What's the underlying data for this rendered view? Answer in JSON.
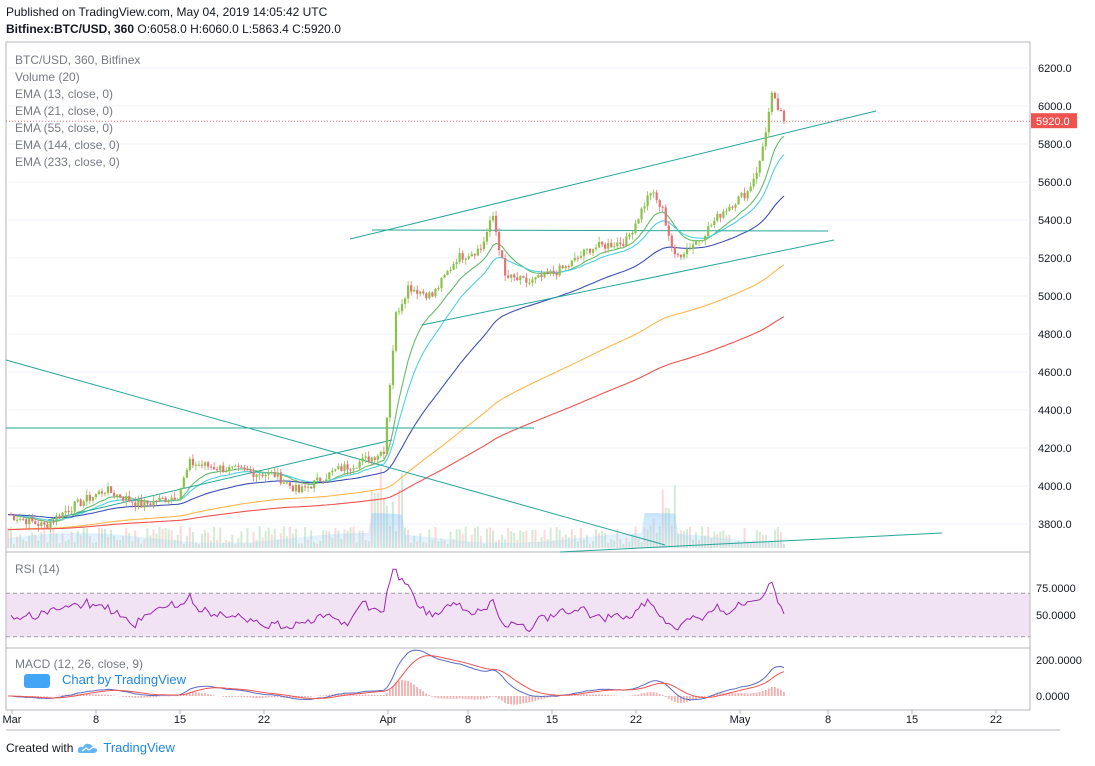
{
  "header": {
    "published": "Published on TradingView.com, May 04, 2019 14:05:42 UTC",
    "symbol": "Bitfinex:BTC/USD, 360",
    "ohlc": "O:6058.0 H:6060.0 L:5863.4 C:5920.0"
  },
  "legend": [
    "BTC/USD, 360, Bitfinex",
    "Volume (20)",
    "EMA (13, close, 0)",
    "EMA (21, close, 0)",
    "EMA (55, close, 0)",
    "EMA (144, close, 0)",
    "EMA (233, close, 0)"
  ],
  "last_price": "5920.0",
  "panes": {
    "rsi_label": "RSI (14)",
    "macd_label": "MACD (12, 26, close, 9)",
    "watermark": "Chart by TradingView"
  },
  "footer": {
    "created": "Created with",
    "brand": "TradingView"
  },
  "colors": {
    "up": "#8bc34a",
    "down": "#e57373",
    "ema13": "#66bb6a",
    "ema21": "#4dd0e1",
    "ema55": "#3f51b5",
    "ema144": "#ffb74d",
    "ema233": "#ef5350",
    "trend": "#26a69a",
    "rsi": "#9c27b0",
    "macd": "#5c6bc0",
    "signal": "#ef5350"
  },
  "chart_data": {
    "type": "candlestick",
    "price_axis": {
      "ticks": [
        "6200.0",
        "6000.0",
        "5800.0",
        "5600.0",
        "5400.0",
        "5200.0",
        "5000.0",
        "4800.0",
        "4600.0",
        "4400.0",
        "4200.0",
        "4000.0",
        "3800.0"
      ],
      "range": [
        3650,
        6280
      ]
    },
    "rsi_axis": {
      "ticks": [
        "75.0000",
        "50.0000"
      ],
      "bands": [
        70,
        30
      ]
    },
    "macd_axis": {
      "ticks": [
        "200.0000",
        "0.0000"
      ]
    },
    "x_ticks": [
      "Mar",
      "8",
      "15",
      "22",
      "Apr",
      "8",
      "15",
      "22",
      "May",
      "8",
      "15",
      "22"
    ],
    "close_path": [
      {
        "date": "Mar 01",
        "close": 3850
      },
      {
        "date": "Mar 04",
        "close": 3790
      },
      {
        "date": "Mar 06",
        "close": 3880
      },
      {
        "date": "Mar 09",
        "close": 3980
      },
      {
        "date": "Mar 12",
        "close": 3900
      },
      {
        "date": "Mar 15",
        "close": 3950
      },
      {
        "date": "Mar 16",
        "close": 4120
      },
      {
        "date": "Mar 20",
        "close": 4080
      },
      {
        "date": "Mar 23",
        "close": 4060
      },
      {
        "date": "Mar 25",
        "close": 3970
      },
      {
        "date": "Mar 28",
        "close": 4080
      },
      {
        "date": "Mar 31",
        "close": 4150
      },
      {
        "date": "Apr 01",
        "close": 4190
      },
      {
        "date": "Apr 02",
        "close": 4900
      },
      {
        "date": "Apr 03",
        "close": 5050
      },
      {
        "date": "Apr 05",
        "close": 5000
      },
      {
        "date": "Apr 07",
        "close": 5200
      },
      {
        "date": "Apr 09",
        "close": 5250
      },
      {
        "date": "Apr 10",
        "close": 5420
      },
      {
        "date": "Apr 11",
        "close": 5100
      },
      {
        "date": "Apr 13",
        "close": 5070
      },
      {
        "date": "Apr 16",
        "close": 5150
      },
      {
        "date": "Apr 18",
        "close": 5250
      },
      {
        "date": "Apr 21",
        "close": 5290
      },
      {
        "date": "Apr 23",
        "close": 5550
      },
      {
        "date": "Apr 24",
        "close": 5450
      },
      {
        "date": "Apr 25",
        "close": 5200
      },
      {
        "date": "Apr 27",
        "close": 5300
      },
      {
        "date": "Apr 29",
        "close": 5450
      },
      {
        "date": "May 01",
        "close": 5550
      },
      {
        "date": "May 02",
        "close": 5700
      },
      {
        "date": "May 03",
        "close": 6050
      },
      {
        "date": "May 04",
        "close": 5920
      }
    ]
  }
}
